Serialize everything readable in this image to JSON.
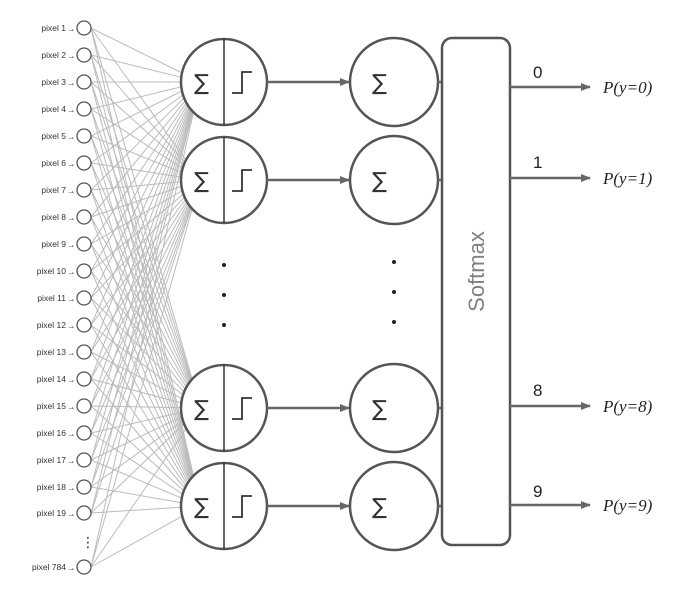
{
  "inputs": {
    "labels": [
      "pixel 1",
      "pixel 2",
      "pixel 3",
      "pixel 4",
      "pixel 5",
      "pixel 6",
      "pixel 7",
      "pixel 8",
      "pixel 9",
      "pixel 10",
      "pixel 11",
      "pixel 12",
      "pixel 13",
      "pixel 14",
      "pixel 15",
      "pixel 16",
      "pixel 17",
      "pixel 18",
      "pixel 19",
      "pixel 784"
    ],
    "arrow": "→",
    "ellipsis": "⋮"
  },
  "neuron": {
    "sum_symbol": "∑",
    "ellipsis": "⋮"
  },
  "softmax": {
    "label": "Softmax"
  },
  "outputs": {
    "classes": [
      "0",
      "1",
      "8",
      "9"
    ],
    "probabilities": [
      "P(y=0)",
      "P(y=1)",
      "P(y=8)",
      "P(y=9)"
    ]
  },
  "colors": {
    "node_stroke": "#555555",
    "line": "#666666",
    "connection": "#bbbbbb",
    "softmax_text": "#808080"
  }
}
